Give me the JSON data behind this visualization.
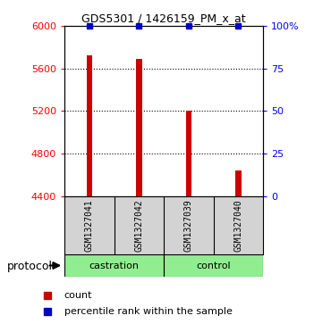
{
  "title": "GDS5301 / 1426159_PM_x_at",
  "samples": [
    "GSM1327041",
    "GSM1327042",
    "GSM1327039",
    "GSM1327040"
  ],
  "bar_values": [
    5720,
    5690,
    5200,
    4640
  ],
  "percentile_values": [
    100,
    100,
    100,
    100
  ],
  "bar_color": "#cc0000",
  "percentile_color": "#0000cc",
  "ylim_left": [
    4400,
    6000
  ],
  "ylim_right": [
    0,
    100
  ],
  "yticks_left": [
    4400,
    4800,
    5200,
    5600,
    6000
  ],
  "yticks_right": [
    0,
    25,
    50,
    75,
    100
  ],
  "ytick_labels_right": [
    "0",
    "25",
    "50",
    "75",
    "100%"
  ],
  "grid_yticks": [
    4800,
    5200,
    5600
  ],
  "background_color": "#ffffff",
  "plot_bg": "#ffffff",
  "label_bg": "#d3d3d3",
  "bar_width": 0.12,
  "x_positions": [
    0,
    1,
    2,
    3
  ],
  "castration_color": "#90EE90",
  "control_color": "#90EE90"
}
